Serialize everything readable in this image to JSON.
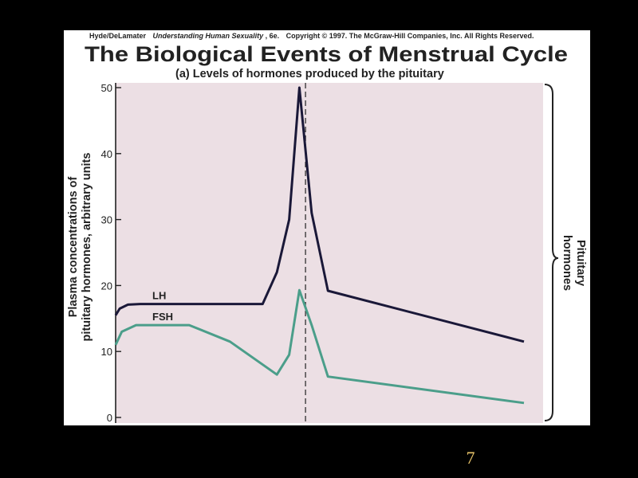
{
  "credit": {
    "authors": "Hyde/DeLamater",
    "book_title": "Understanding Human Sexuality",
    "edition": ", 6e.",
    "copyright": "Copyright © 1997. The McGraw-Hill Companies, Inc. All Rights Reserved."
  },
  "slide_number": "7",
  "colors": {
    "background": "#000000",
    "plot_bg": "#ecdfe4",
    "lh": "#1a1838",
    "fsh": "#4b9e8a",
    "page_number": "#e8c46a"
  },
  "chart_data": {
    "type": "line",
    "title": "The Biological Events of Menstrual Cycle",
    "subtitle": "(a) Levels of hormones produced by the pituitary",
    "ylabel": [
      "Plasma concentrations of",
      "pituitary hormones, arbitrary units"
    ],
    "xlabel": "",
    "ylim": [
      0,
      50
    ],
    "yticks": [
      0,
      10,
      20,
      30,
      40,
      50
    ],
    "x_range": [
      0,
      100
    ],
    "grid": false,
    "ovulation_marker_x": 46.5,
    "bracket_label": [
      "Pituitary",
      "hormones"
    ],
    "series": [
      {
        "name": "LH",
        "color": "#1a1838",
        "points": [
          [
            0,
            15.5
          ],
          [
            1,
            16.5
          ],
          [
            3,
            17.1
          ],
          [
            6,
            17.2
          ],
          [
            20,
            17.2
          ],
          [
            36,
            17.2
          ],
          [
            39.5,
            22
          ],
          [
            42.5,
            30
          ],
          [
            45,
            50
          ],
          [
            48,
            31
          ],
          [
            52,
            19.2
          ],
          [
            100,
            11.5
          ]
        ]
      },
      {
        "name": "FSH",
        "color": "#4b9e8a",
        "points": [
          [
            0,
            11
          ],
          [
            1.5,
            13
          ],
          [
            5,
            14
          ],
          [
            18,
            14
          ],
          [
            28,
            11.5
          ],
          [
            39.5,
            6.5
          ],
          [
            42.5,
            9.5
          ],
          [
            45,
            19.3
          ],
          [
            48,
            14
          ],
          [
            52,
            6.2
          ],
          [
            100,
            2.2
          ]
        ]
      }
    ]
  }
}
